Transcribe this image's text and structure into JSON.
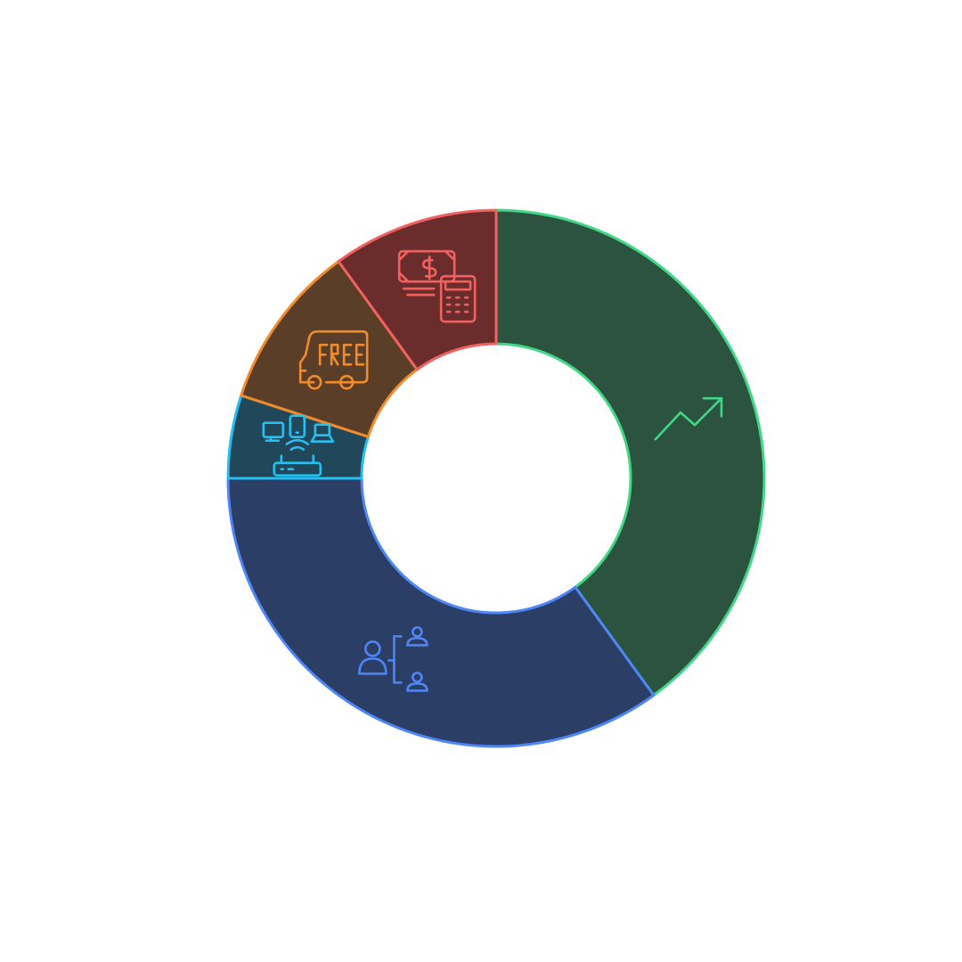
{
  "chart_data": {
    "type": "pie",
    "variant": "donut",
    "title": "",
    "series": [
      {
        "icon": "trending-up-icon",
        "value": 40,
        "fill": "#2c5240",
        "stroke": "#3fd884"
      },
      {
        "icon": "user-hierarchy-icon",
        "value": 35,
        "fill": "#2b3f66",
        "stroke": "#4f86f7"
      },
      {
        "icon": "connected-devices-router-icon",
        "value": 5,
        "fill": "#21485a",
        "stroke": "#25bff0"
      },
      {
        "icon": "free-delivery-truck-icon",
        "value": 10,
        "fill": "#5a3e28",
        "stroke": "#f08c2c"
      },
      {
        "icon": "cash-calculator-icon",
        "value": 10,
        "fill": "#6b2c2c",
        "stroke": "#f26060"
      }
    ],
    "start": "top",
    "direction": "clockwise",
    "legend": "none"
  }
}
